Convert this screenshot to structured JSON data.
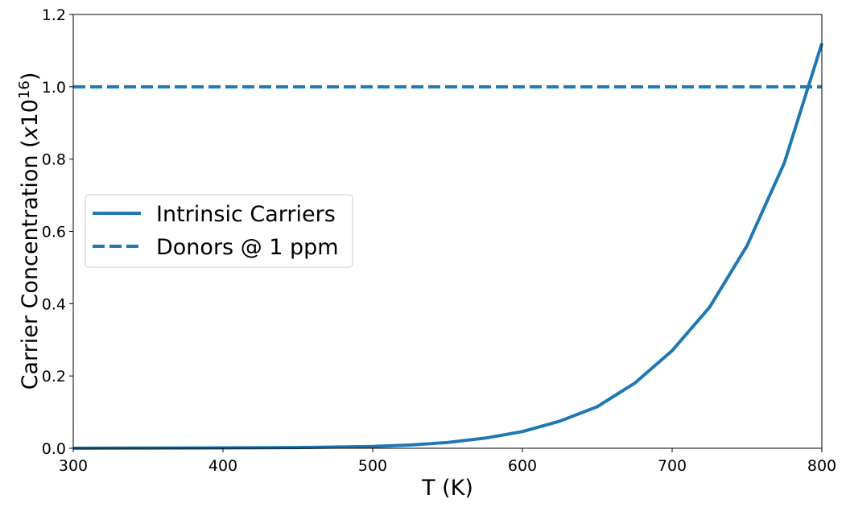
{
  "chart_data": {
    "type": "line",
    "xlabel": "T (K)",
    "ylabel": {
      "prefix": "Carrier Concentration (",
      "italic": "x",
      "base": "10",
      "exponent": "16",
      "suffix": ")"
    },
    "xlim": [
      300,
      800
    ],
    "ylim": [
      0.0,
      1.2
    ],
    "xticks": [
      300,
      400,
      500,
      600,
      700,
      800
    ],
    "xtick_labels": [
      "300",
      "400",
      "500",
      "600",
      "700",
      "800"
    ],
    "yticks": [
      0.0,
      0.2,
      0.4,
      0.6,
      0.8,
      1.0,
      1.2
    ],
    "ytick_labels": [
      "0.0",
      "0.2",
      "0.4",
      "0.6",
      "0.8",
      "1.0",
      "1.2"
    ],
    "grid": false,
    "legend_position": "center-left",
    "color": "#1f77b4",
    "series": [
      {
        "name": "Intrinsic Carriers",
        "style": "solid",
        "x": [
          300,
          400,
          450,
          500,
          525,
          550,
          575,
          600,
          625,
          650,
          675,
          700,
          725,
          750,
          775,
          800
        ],
        "y": [
          0.0,
          0.001,
          0.002,
          0.005,
          0.009,
          0.016,
          0.028,
          0.046,
          0.075,
          0.115,
          0.18,
          0.27,
          0.39,
          0.56,
          0.79,
          1.12
        ]
      },
      {
        "name": "Donors @ 1 ppm",
        "style": "dashed",
        "x": [
          300,
          800
        ],
        "y": [
          1.0,
          1.0
        ]
      }
    ]
  }
}
